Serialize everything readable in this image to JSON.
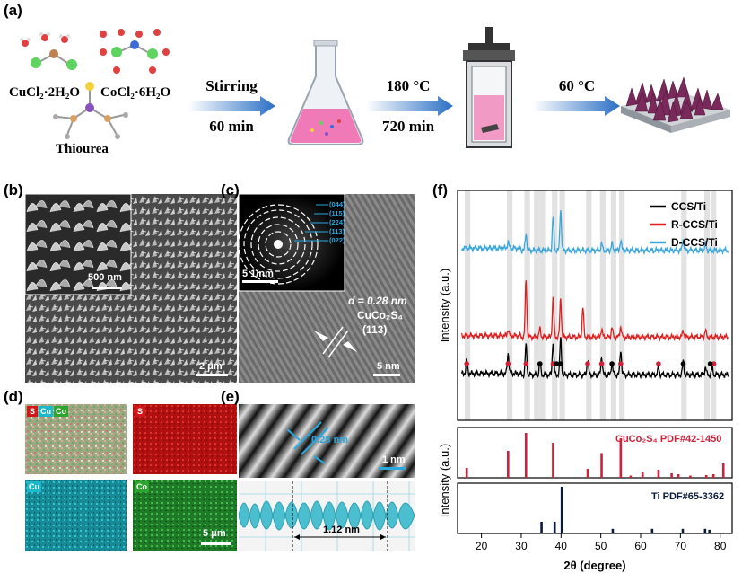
{
  "panels": {
    "a": "(a)",
    "b": "(b)",
    "c": "(c)",
    "d": "(d)",
    "e": "(e)",
    "f": "(f)"
  },
  "synthesis": {
    "reagent1": "CuCl₂·2H₂O",
    "reagent2": "CoCl₂·6H₂O",
    "reagent3": "Thiourea",
    "step1_top": "Stirring",
    "step1_bottom": "60 min",
    "step2_top": "180 °C",
    "step2_bottom": "720 min",
    "step3_top": "60 °C"
  },
  "sem_b": {
    "inset_scale": "500 nm",
    "main_scale": "2 μm"
  },
  "tem_c": {
    "saed_rings": [
      "(044)",
      "(115)",
      "(224)",
      "(113)",
      "(022)"
    ],
    "saed_scale": "5 1/nm",
    "d_spacing": "d = 0.28 nm",
    "phase": "CuCo₂S₄",
    "plane": "(113)",
    "scale": "5 nm"
  },
  "eds_d": {
    "tags": [
      "S",
      "Cu",
      "Co"
    ],
    "map_s": "S",
    "map_cu": "Cu",
    "map_co": "Co",
    "scale": "5 μm",
    "colors": {
      "S": "#d01818",
      "Cu": "#1ab8c8",
      "Co": "#2ea52e"
    }
  },
  "fft_e": {
    "spacing": "0.28 nm",
    "scale": "1 nm",
    "period": "1.12 nm"
  },
  "chart_data": {
    "type": "line",
    "title": "",
    "xlabel": "2θ (degree)",
    "ylabel_top": "Intensity (a.u.)",
    "ylabel_bottom": "Intensity (a.u.)",
    "xlim": [
      14,
      83
    ],
    "xticks": [
      20,
      30,
      40,
      50,
      60,
      70,
      80
    ],
    "legend": {
      "position": "top-right",
      "entries": [
        "CCS/Ti",
        "R-CCS/Ti",
        "D-CCS/Ti"
      ]
    },
    "series": [
      {
        "name": "CCS/Ti",
        "color": "#000000",
        "offset": 0,
        "peaks": [
          [
            16.3,
            0.25
          ],
          [
            26.7,
            0.38
          ],
          [
            31.2,
            0.55
          ],
          [
            34.7,
            0.22
          ],
          [
            38.0,
            0.62
          ],
          [
            39.9,
            0.68
          ],
          [
            46.7,
            0.28
          ],
          [
            50.2,
            0.33
          ],
          [
            52.8,
            0.22
          ],
          [
            55.0,
            0.46
          ],
          [
            64.5,
            0.12
          ],
          [
            70.7,
            0.24
          ],
          [
            76.3,
            0.14
          ],
          [
            78.0,
            0.12
          ]
        ]
      },
      {
        "name": "R-CCS/Ti",
        "color": "#e02020",
        "offset": 1,
        "peaks": [
          [
            26.7,
            0.12
          ],
          [
            31.2,
            1.05
          ],
          [
            34.7,
            0.15
          ],
          [
            38.0,
            0.72
          ],
          [
            39.9,
            0.72
          ],
          [
            45.5,
            0.55
          ],
          [
            50.2,
            0.15
          ],
          [
            52.8,
            0.18
          ],
          [
            55.0,
            0.2
          ],
          [
            70.7,
            0.12
          ],
          [
            76.3,
            0.12
          ]
        ]
      },
      {
        "name": "D-CCS/Ti",
        "color": "#3aa7dc",
        "offset": 2,
        "peaks": [
          [
            26.7,
            0.12
          ],
          [
            31.2,
            0.32
          ],
          [
            38.0,
            0.62
          ],
          [
            39.9,
            0.78
          ],
          [
            50.2,
            0.12
          ],
          [
            52.8,
            0.12
          ],
          [
            55.0,
            0.18
          ],
          [
            70.7,
            0.22
          ],
          [
            76.3,
            0.12
          ]
        ]
      }
    ],
    "shaded_regions": [
      15.8,
      26.4,
      30.8,
      33.2,
      34.6,
      37.7,
      39.6,
      46.3,
      49.8,
      52.5,
      54.6,
      70.2,
      76.0,
      77.6
    ],
    "markers_black": [
      34.7,
      38.9,
      39.9,
      52.8,
      70.7,
      77.5
    ],
    "markers_red": [
      16.3,
      26.7,
      31.2,
      38.0,
      46.7,
      50.2,
      55.0,
      64.5,
      78.4
    ],
    "reference_cucos": {
      "label": "CuCo₂S₄ PDF#42-1450",
      "color": "#d0203a",
      "peaks": [
        [
          16.3,
          0.22
        ],
        [
          26.7,
          0.6
        ],
        [
          31.2,
          1.0
        ],
        [
          38.0,
          0.78
        ],
        [
          46.7,
          0.2
        ],
        [
          50.2,
          0.55
        ],
        [
          55.0,
          0.88
        ],
        [
          57.5,
          0.05
        ],
        [
          60.5,
          0.12
        ],
        [
          64.5,
          0.18
        ],
        [
          67.8,
          0.1
        ],
        [
          69.5,
          0.08
        ],
        [
          72.5,
          0.05
        ],
        [
          76.5,
          0.06
        ],
        [
          78.3,
          0.08
        ],
        [
          80.8,
          0.32
        ]
      ]
    },
    "reference_ti": {
      "label": "Ti PDF#65-3362",
      "color": "#0a1a3a",
      "peaks": [
        [
          35.1,
          0.25
        ],
        [
          38.4,
          0.25
        ],
        [
          40.2,
          1.0
        ],
        [
          53.0,
          0.1
        ],
        [
          62.9,
          0.1
        ],
        [
          70.6,
          0.1
        ],
        [
          76.2,
          0.1
        ],
        [
          77.3,
          0.08
        ]
      ]
    }
  }
}
